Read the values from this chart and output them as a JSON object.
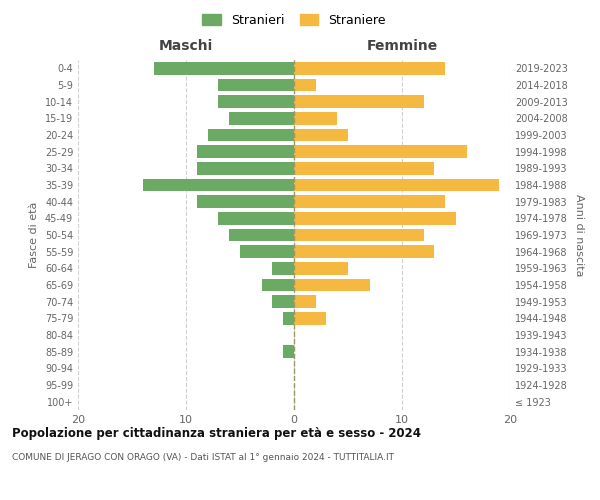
{
  "age_groups": [
    "100+",
    "95-99",
    "90-94",
    "85-89",
    "80-84",
    "75-79",
    "70-74",
    "65-69",
    "60-64",
    "55-59",
    "50-54",
    "45-49",
    "40-44",
    "35-39",
    "30-34",
    "25-29",
    "20-24",
    "15-19",
    "10-14",
    "5-9",
    "0-4"
  ],
  "birth_years": [
    "≤ 1923",
    "1924-1928",
    "1929-1933",
    "1934-1938",
    "1939-1943",
    "1944-1948",
    "1949-1953",
    "1954-1958",
    "1959-1963",
    "1964-1968",
    "1969-1973",
    "1974-1978",
    "1979-1983",
    "1984-1988",
    "1989-1993",
    "1994-1998",
    "1999-2003",
    "2004-2008",
    "2009-2013",
    "2014-2018",
    "2019-2023"
  ],
  "maschi": [
    0,
    0,
    0,
    1,
    0,
    1,
    2,
    3,
    2,
    5,
    6,
    7,
    9,
    14,
    9,
    9,
    8,
    6,
    7,
    7,
    13
  ],
  "femmine": [
    0,
    0,
    0,
    0,
    0,
    3,
    2,
    7,
    5,
    13,
    12,
    15,
    14,
    19,
    13,
    16,
    5,
    4,
    12,
    2,
    14
  ],
  "maschi_color": "#6aaa64",
  "femmine_color": "#f5b942",
  "background_color": "#ffffff",
  "grid_color": "#d0d0d0",
  "center_line_color": "#999966",
  "title": "Popolazione per cittadinanza straniera per età e sesso - 2024",
  "subtitle": "COMUNE DI JERAGO CON ORAGO (VA) - Dati ISTAT al 1° gennaio 2024 - TUTTITALIA.IT",
  "left_header": "Maschi",
  "right_header": "Femmine",
  "left_ylabel": "Fasce di età",
  "right_ylabel": "Anni di nascita",
  "legend_maschi": "Stranieri",
  "legend_femmine": "Straniere",
  "xlim": 20,
  "bar_height": 0.75
}
